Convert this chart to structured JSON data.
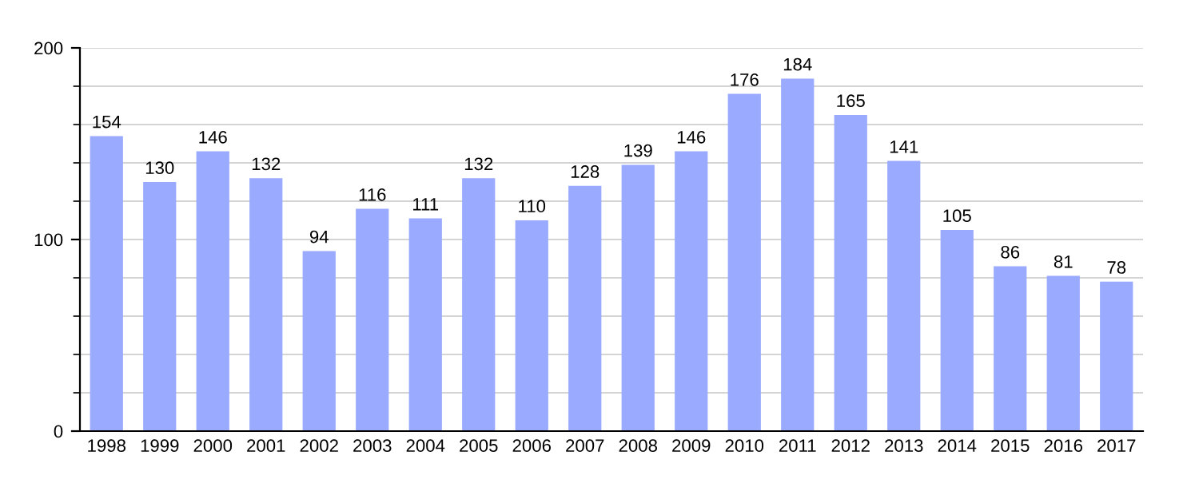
{
  "chart_data": {
    "type": "bar",
    "categories": [
      "1998",
      "1999",
      "2000",
      "2001",
      "2002",
      "2003",
      "2004",
      "2005",
      "2006",
      "2007",
      "2008",
      "2009",
      "2010",
      "2011",
      "2012",
      "2013",
      "2014",
      "2015",
      "2016",
      "2017"
    ],
    "values": [
      154,
      130,
      146,
      132,
      94,
      116,
      111,
      132,
      110,
      128,
      139,
      146,
      176,
      184,
      165,
      141,
      105,
      86,
      81,
      78
    ],
    "color": "#99aaff",
    "ylim": [
      0,
      200
    ],
    "yticks": [
      0,
      {
        "value": 20,
        "label": null
      },
      {
        "value": 40,
        "label": null
      },
      {
        "value": 60,
        "label": null
      },
      {
        "value": 80,
        "label": null
      },
      100,
      {
        "value": 120,
        "label": null
      },
      {
        "value": 140,
        "label": null
      },
      {
        "value": 160,
        "label": null
      },
      {
        "value": 180,
        "label": null
      },
      200
    ],
    "grid": "y",
    "data_labels": true
  }
}
